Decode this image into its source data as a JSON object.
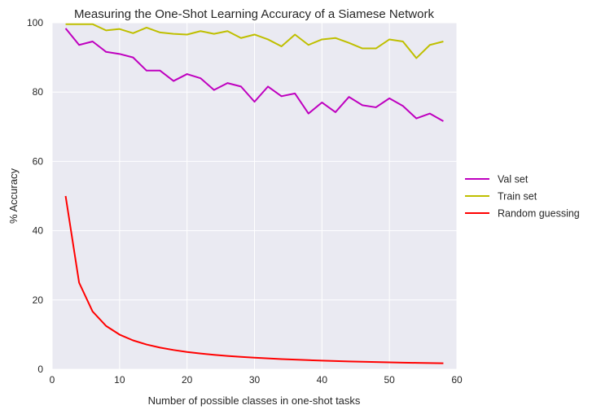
{
  "chart_data": {
    "type": "line",
    "title": "Measuring the One-Shot Learning Accuracy of a Siamese Network",
    "xlabel": "Number of possible classes in one-shot tasks",
    "ylabel": "% Accuracy",
    "xlim": [
      0,
      60
    ],
    "ylim": [
      0,
      100
    ],
    "xticks": [
      "0",
      "10",
      "20",
      "30",
      "40",
      "50",
      "60"
    ],
    "yticks": [
      "0",
      "20",
      "40",
      "60",
      "80",
      "100"
    ],
    "grid": true,
    "legend_position": "right",
    "x": [
      2,
      4,
      6,
      8,
      10,
      12,
      14,
      16,
      18,
      20,
      22,
      24,
      26,
      28,
      30,
      32,
      34,
      36,
      38,
      40,
      42,
      44,
      46,
      48,
      50,
      52,
      54,
      56,
      58
    ],
    "series": [
      {
        "name": "Val set",
        "color": "#bf00bf",
        "values": [
          98.4,
          93.6,
          94.6,
          91.6,
          91.0,
          90.0,
          86.2,
          86.2,
          83.2,
          85.2,
          84.0,
          80.6,
          82.6,
          81.6,
          77.2,
          81.6,
          78.8,
          79.6,
          73.8,
          77.0,
          74.2,
          78.6,
          76.2,
          75.6,
          78.2,
          76.0,
          72.4,
          73.8,
          71.6
        ]
      },
      {
        "name": "Train set",
        "color": "#bfbf00",
        "values": [
          99.6,
          99.6,
          99.6,
          97.8,
          98.2,
          97.0,
          98.6,
          97.2,
          96.8,
          96.6,
          97.6,
          96.8,
          97.6,
          95.6,
          96.6,
          95.2,
          93.2,
          96.6,
          93.6,
          95.2,
          95.6,
          94.2,
          92.6,
          92.6,
          95.2,
          94.6,
          89.8,
          93.6,
          94.6
        ]
      },
      {
        "name": "Random guessing",
        "color": "#ff0000",
        "values": [
          50.0,
          25.0,
          16.67,
          12.5,
          10.0,
          8.33,
          7.14,
          6.25,
          5.56,
          5.0,
          4.55,
          4.17,
          3.85,
          3.57,
          3.33,
          3.13,
          2.94,
          2.78,
          2.63,
          2.5,
          2.38,
          2.27,
          2.17,
          2.08,
          2.0,
          1.92,
          1.85,
          1.79,
          1.72
        ]
      }
    ]
  }
}
